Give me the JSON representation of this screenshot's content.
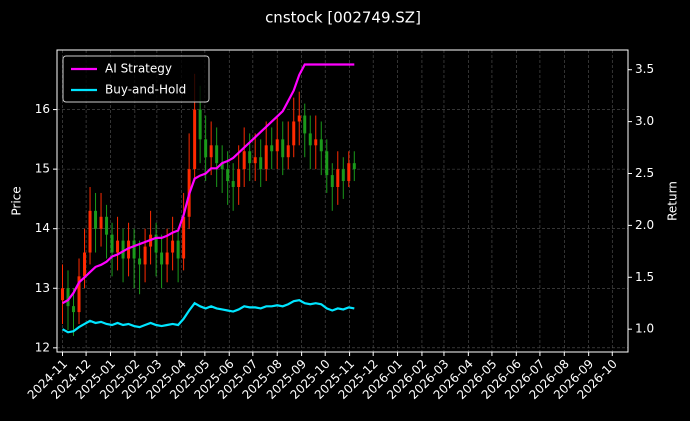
{
  "chart_data": {
    "type": "candlestick",
    "title": "cnstock [002749.SZ]",
    "ylabel": "Price",
    "y2label": "Return",
    "x": [
      "2024-11-01",
      "2024-11-08",
      "2024-11-15",
      "2024-11-22",
      "2024-11-29",
      "2024-12-06",
      "2024-12-13",
      "2024-12-20",
      "2024-12-27",
      "2025-01-03",
      "2025-01-10",
      "2025-01-17",
      "2025-01-24",
      "2025-01-31",
      "2025-02-07",
      "2025-02-14",
      "2025-02-21",
      "2025-02-28",
      "2025-03-07",
      "2025-03-14",
      "2025-03-21",
      "2025-03-28",
      "2025-04-04",
      "2025-04-11",
      "2025-04-18",
      "2025-04-25",
      "2025-05-02",
      "2025-05-09",
      "2025-05-16",
      "2025-05-23",
      "2025-05-30",
      "2025-06-06",
      "2025-06-13",
      "2025-06-20",
      "2025-06-27",
      "2025-07-04",
      "2025-07-11",
      "2025-07-18",
      "2025-07-25",
      "2025-08-01",
      "2025-08-08",
      "2025-08-15",
      "2025-08-22",
      "2025-08-29",
      "2025-09-05",
      "2025-09-12",
      "2025-09-19",
      "2025-09-26",
      "2025-10-03",
      "2025-10-10",
      "2025-10-17",
      "2025-10-24",
      "2025-10-31",
      "2025-11-07"
    ],
    "open": [
      12.8,
      13.0,
      12.7,
      12.6,
      13.2,
      13.6,
      14.3,
      14.0,
      14.2,
      13.9,
      13.6,
      13.8,
      13.5,
      13.8,
      13.5,
      13.4,
      13.7,
      13.9,
      13.6,
      13.4,
      13.6,
      13.8,
      13.5,
      14.2,
      15.0,
      16.0,
      15.5,
      15.2,
      15.4,
      15.1,
      15.0,
      14.8,
      14.7,
      15.0,
      15.3,
      15.1,
      15.2,
      15.0,
      15.4,
      15.3,
      15.5,
      15.2,
      15.4,
      15.8,
      15.9,
      15.6,
      15.4,
      15.5,
      15.3,
      14.9,
      14.7,
      15.0,
      14.8,
      15.1
    ],
    "high": [
      13.4,
      13.3,
      13.0,
      13.5,
      14.0,
      14.7,
      14.6,
      14.6,
      14.4,
      14.1,
      14.2,
      14.0,
      14.1,
      14.0,
      13.8,
      14.0,
      14.3,
      14.1,
      13.9,
      14.0,
      14.2,
      14.0,
      14.6,
      15.6,
      16.6,
      16.4,
      15.9,
      15.8,
      15.7,
      15.4,
      15.3,
      15.1,
      15.4,
      15.7,
      15.6,
      15.6,
      15.5,
      15.8,
      15.7,
      15.9,
      15.8,
      15.8,
      16.2,
      16.3,
      16.1,
      15.9,
      15.9,
      15.8,
      15.5,
      15.1,
      15.3,
      15.2,
      15.3,
      15.3
    ],
    "low": [
      12.4,
      12.3,
      12.2,
      12.4,
      13.0,
      13.4,
      13.6,
      13.7,
      13.5,
      13.2,
      13.3,
      13.1,
      13.2,
      13.0,
      12.9,
      13.1,
      13.4,
      13.2,
      13.0,
      13.1,
      13.3,
      13.1,
      13.3,
      14.0,
      14.8,
      15.1,
      14.8,
      14.9,
      14.7,
      14.6,
      14.4,
      14.3,
      14.4,
      14.7,
      14.8,
      14.8,
      14.7,
      14.8,
      15.0,
      15.0,
      14.9,
      15.0,
      15.2,
      15.4,
      15.2,
      15.0,
      15.0,
      14.9,
      14.6,
      14.3,
      14.4,
      14.5,
      14.7,
      14.8
    ],
    "close": [
      13.0,
      12.7,
      12.6,
      13.2,
      13.6,
      14.3,
      14.0,
      14.2,
      13.9,
      13.6,
      13.8,
      13.5,
      13.8,
      13.5,
      13.4,
      13.7,
      13.9,
      13.6,
      13.4,
      13.6,
      13.8,
      13.5,
      14.2,
      15.0,
      16.0,
      15.5,
      15.2,
      15.4,
      15.1,
      15.0,
      14.8,
      14.7,
      15.0,
      15.3,
      15.1,
      15.2,
      15.0,
      15.4,
      15.3,
      15.5,
      15.2,
      15.4,
      15.8,
      15.9,
      15.6,
      15.4,
      15.5,
      15.3,
      14.9,
      14.7,
      15.0,
      14.8,
      15.1,
      15.0
    ],
    "up_color": "#ff2a00",
    "down_color": "#1a9a1a",
    "series": [
      {
        "name": "AI Strategy",
        "color": "#ff00ff",
        "axis": "y2",
        "values": [
          1.25,
          1.28,
          1.35,
          1.45,
          1.5,
          1.55,
          1.6,
          1.62,
          1.65,
          1.7,
          1.72,
          1.75,
          1.78,
          1.8,
          1.82,
          1.84,
          1.86,
          1.88,
          1.88,
          1.9,
          1.93,
          1.95,
          2.1,
          2.3,
          2.45,
          2.48,
          2.5,
          2.55,
          2.55,
          2.6,
          2.62,
          2.65,
          2.7,
          2.75,
          2.8,
          2.85,
          2.9,
          2.95,
          3.0,
          3.05,
          3.1,
          3.2,
          3.3,
          3.45,
          3.55,
          3.55,
          3.55,
          3.55,
          3.55,
          3.55,
          3.55,
          3.55,
          3.55,
          3.55
        ]
      },
      {
        "name": "Buy-and-Hold",
        "color": "#00e5ff",
        "axis": "y2",
        "values": [
          1.0,
          0.97,
          0.98,
          1.02,
          1.05,
          1.08,
          1.06,
          1.07,
          1.05,
          1.04,
          1.06,
          1.04,
          1.05,
          1.03,
          1.02,
          1.04,
          1.06,
          1.04,
          1.03,
          1.04,
          1.05,
          1.04,
          1.1,
          1.18,
          1.25,
          1.22,
          1.2,
          1.22,
          1.2,
          1.19,
          1.18,
          1.17,
          1.19,
          1.22,
          1.21,
          1.21,
          1.2,
          1.22,
          1.22,
          1.23,
          1.22,
          1.24,
          1.27,
          1.28,
          1.25,
          1.24,
          1.25,
          1.24,
          1.2,
          1.18,
          1.2,
          1.19,
          1.21,
          1.2
        ]
      }
    ],
    "xlim": [
      "2024-10-25",
      "2026-10-21"
    ],
    "xticks": [
      {
        "value": "2024-11-01",
        "label": "2024-11"
      },
      {
        "value": "2024-12-01",
        "label": "2024-12"
      },
      {
        "value": "2025-01-01",
        "label": "2025-01"
      },
      {
        "value": "2025-02-01",
        "label": "2025-02"
      },
      {
        "value": "2025-03-01",
        "label": "2025-03"
      },
      {
        "value": "2025-04-01",
        "label": "2025-04"
      },
      {
        "value": "2025-05-01",
        "label": "2025-05"
      },
      {
        "value": "2025-06-01",
        "label": "2025-06"
      },
      {
        "value": "2025-07-01",
        "label": "2025-07"
      },
      {
        "value": "2025-08-01",
        "label": "2025-08"
      },
      {
        "value": "2025-09-01",
        "label": "2025-09"
      },
      {
        "value": "2025-10-01",
        "label": "2025-10"
      },
      {
        "value": "2025-11-01",
        "label": "2025-11"
      },
      {
        "value": "2025-12-01",
        "label": "2025-12"
      },
      {
        "value": "2026-01-01",
        "label": "2026-01"
      },
      {
        "value": "2026-02-01",
        "label": "2026-02"
      },
      {
        "value": "2026-03-01",
        "label": "2026-03"
      },
      {
        "value": "2026-04-01",
        "label": "2026-04"
      },
      {
        "value": "2026-05-01",
        "label": "2026-05"
      },
      {
        "value": "2026-06-01",
        "label": "2026-06"
      },
      {
        "value": "2026-07-01",
        "label": "2026-07"
      },
      {
        "value": "2026-08-01",
        "label": "2026-08"
      },
      {
        "value": "2026-09-01",
        "label": "2026-09"
      },
      {
        "value": "2026-10-01",
        "label": "2026-10"
      }
    ],
    "ylim": [
      11.93,
      17.0
    ],
    "yticks": [
      12,
      13,
      14,
      15,
      16
    ],
    "y2lim": [
      0.78,
      3.69
    ],
    "y2ticks": [
      {
        "value": 1,
        "label": "1.0"
      },
      1.5,
      {
        "value": 2,
        "label": "2.0"
      },
      2.5,
      {
        "value": 3,
        "label": "3.0"
      },
      3.5
    ],
    "grid": true,
    "legend": "upper left"
  }
}
